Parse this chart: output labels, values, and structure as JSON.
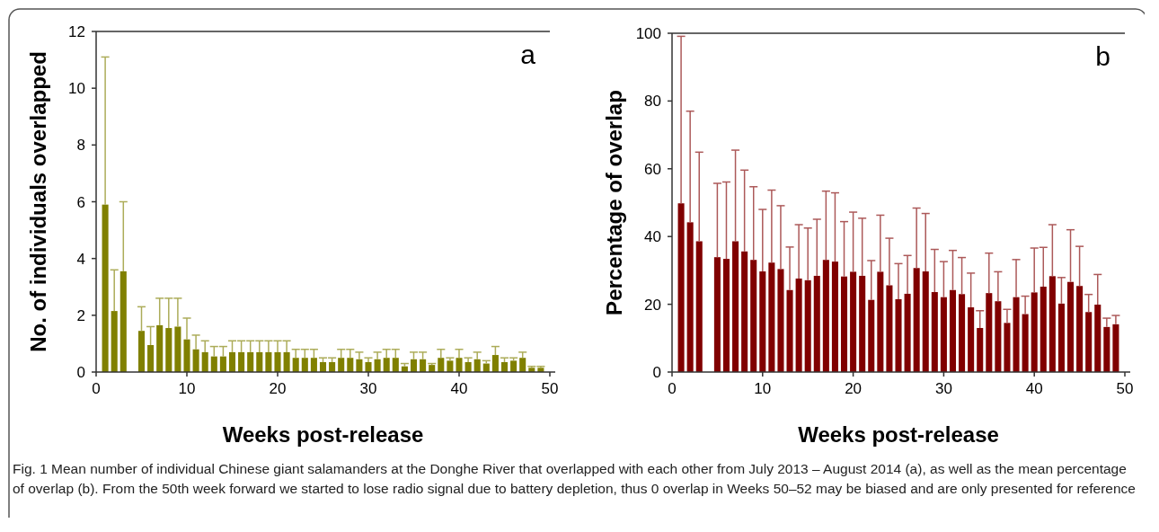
{
  "chart_data": [
    {
      "type": "bar",
      "xlabel": "Weeks post-release",
      "ylabel": "No. of individuals overlapped",
      "xlim": [
        0,
        50
      ],
      "xticks": [
        0,
        10,
        20,
        30,
        40,
        50
      ],
      "ylim": [
        0,
        12
      ],
      "yticks": [
        0,
        2,
        4,
        6,
        8,
        10,
        12
      ],
      "x": [
        1,
        2,
        3,
        5,
        6,
        7,
        8,
        9,
        10,
        11,
        12,
        13,
        14,
        15,
        16,
        17,
        18,
        19,
        20,
        21,
        22,
        23,
        24,
        25,
        26,
        27,
        28,
        29,
        30,
        31,
        32,
        33,
        34,
        35,
        36,
        37,
        38,
        39,
        40,
        41,
        42,
        43,
        44,
        45,
        46,
        47,
        48,
        49
      ],
      "series": [
        {
          "color": "#808000",
          "values": [
            5.9,
            2.15,
            3.55,
            1.45,
            0.95,
            1.65,
            1.55,
            1.6,
            1.15,
            0.8,
            0.7,
            0.55,
            0.55,
            0.7,
            0.7,
            0.7,
            0.7,
            0.7,
            0.7,
            0.7,
            0.5,
            0.5,
            0.5,
            0.35,
            0.35,
            0.5,
            0.5,
            0.45,
            0.35,
            0.45,
            0.5,
            0.5,
            0.2,
            0.45,
            0.45,
            0.25,
            0.5,
            0.4,
            0.5,
            0.35,
            0.45,
            0.3,
            0.6,
            0.35,
            0.4,
            0.5,
            0.15,
            0.15
          ],
          "errors": [
            [
              5.9,
              11.1
            ],
            [
              2.15,
              3.6
            ],
            [
              3.55,
              6
            ],
            [
              1.45,
              2.3
            ],
            [
              0.95,
              1.6
            ],
            [
              1.65,
              2.6
            ],
            [
              1.55,
              2.6
            ],
            [
              1.6,
              2.6
            ],
            [
              1.15,
              1.9
            ],
            [
              0.8,
              1.3
            ],
            [
              0.7,
              1.1
            ],
            [
              0.55,
              0.9
            ],
            [
              0.55,
              0.9
            ],
            [
              0.7,
              1.1
            ],
            [
              0.7,
              1.1
            ],
            [
              0.7,
              1.1
            ],
            [
              0.7,
              1.1
            ],
            [
              0.7,
              1.1
            ],
            [
              0.7,
              1.1
            ],
            [
              0.7,
              1.1
            ],
            [
              0.5,
              0.8
            ],
            [
              0.5,
              0.8
            ],
            [
              0.5,
              0.8
            ],
            [
              0.35,
              0.5
            ],
            [
              0.35,
              0.5
            ],
            [
              0.5,
              0.8
            ],
            [
              0.5,
              0.8
            ],
            [
              0.45,
              0.7
            ],
            [
              0.35,
              0.5
            ],
            [
              0.45,
              0.7
            ],
            [
              0.5,
              0.8
            ],
            [
              0.5,
              0.8
            ],
            [
              0.2,
              0.3
            ],
            [
              0.45,
              0.7
            ],
            [
              0.45,
              0.7
            ],
            [
              0.25,
              0.3
            ],
            [
              0.5,
              0.8
            ],
            [
              0.4,
              0.5
            ],
            [
              0.5,
              0.8
            ],
            [
              0.35,
              0.5
            ],
            [
              0.45,
              0.7
            ],
            [
              0.3,
              0.4
            ],
            [
              0.6,
              0.9
            ],
            [
              0.35,
              0.5
            ],
            [
              0.4,
              0.5
            ],
            [
              0.5,
              0.7
            ],
            [
              0.15,
              0.2
            ],
            [
              0.15,
              0.2
            ]
          ]
        }
      ],
      "annotations": [
        "a",
        "Fig. 1 Mean number of individual Chinese giant salamanders at the Donghe River that overlapped with each other from July 2013 – August 2014 (a), as well as the mean percentage of overlap (b). From the 50th week forward we started to lose radio signal due to battery depletion, thus 0 overlap in Weeks 50–52 may be biased and are only presented for reference"
      ]
    },
    {
      "type": "bar",
      "xlabel": "Weeks post-release",
      "ylabel": "Percentage of overlap",
      "xlim": [
        0,
        50
      ],
      "xticks": [
        0,
        10,
        20,
        30,
        40,
        50
      ],
      "ylim": [
        0,
        100
      ],
      "yticks": [
        0,
        20,
        40,
        60,
        80,
        100
      ],
      "x": [
        1,
        2,
        3,
        5,
        6,
        7,
        8,
        9,
        10,
        11,
        12,
        13,
        14,
        15,
        16,
        17,
        18,
        19,
        20,
        21,
        22,
        23,
        24,
        25,
        26,
        27,
        28,
        29,
        30,
        31,
        32,
        33,
        34,
        35,
        36,
        37,
        38,
        39,
        40,
        41,
        42,
        43,
        44,
        45,
        46,
        47,
        48,
        49
      ],
      "series": [
        {
          "color": "#800000",
          "values": [
            49.8,
            44.2,
            38.6,
            33.9,
            33.4,
            38.6,
            35.6,
            33.1,
            29.7,
            32.3,
            30.4,
            24.2,
            27.6,
            27.1,
            28.4,
            33.1,
            32.6,
            28.2,
            29.6,
            28.4,
            21.3,
            29.6,
            25.6,
            21.5,
            23.1,
            30.7,
            29.7,
            23.6,
            22.1,
            24.2,
            23,
            19.1,
            13,
            23.3,
            20.9,
            14.5,
            22.1,
            17.1,
            23.5,
            25.2,
            28.3,
            20.2,
            26.6,
            25.4,
            17.7,
            19.9,
            13.3,
            14.1
          ],
          "errors": [
            [
              49.8,
              99.1
            ],
            [
              44.2,
              77
            ],
            [
              38.6,
              64.9
            ],
            [
              33.9,
              55.7
            ],
            [
              33.4,
              56.1
            ],
            [
              38.6,
              65.5
            ],
            [
              35.6,
              59.6
            ],
            [
              33.1,
              54.7
            ],
            [
              29.7,
              48
            ],
            [
              32.3,
              53.7
            ],
            [
              30.4,
              49.1
            ],
            [
              24.2,
              36.9
            ],
            [
              27.6,
              43.5
            ],
            [
              27.1,
              42.5
            ],
            [
              28.4,
              45.1
            ],
            [
              33.1,
              53.4
            ],
            [
              32.6,
              52.9
            ],
            [
              28.2,
              44.4
            ],
            [
              29.6,
              47.2
            ],
            [
              28.4,
              45.4
            ],
            [
              21.3,
              32.9
            ],
            [
              29.6,
              46.3
            ],
            [
              25.6,
              39.5
            ],
            [
              21.5,
              32
            ],
            [
              23.1,
              34.4
            ],
            [
              30.7,
              48.4
            ],
            [
              29.7,
              46.8
            ],
            [
              23.6,
              36.2
            ],
            [
              22.1,
              32.6
            ],
            [
              24.2,
              35.9
            ],
            [
              23,
              33.8
            ],
            [
              19.1,
              29.2
            ],
            [
              13,
              18.1
            ],
            [
              23.3,
              35.1
            ],
            [
              20.9,
              29.6
            ],
            [
              14.5,
              18.5
            ],
            [
              22.1,
              33.2
            ],
            [
              17.1,
              22.4
            ],
            [
              23.5,
              36.6
            ],
            [
              25.2,
              36.8
            ],
            [
              28.3,
              43.5
            ],
            [
              20.2,
              27.9
            ],
            [
              26.6,
              42
            ],
            [
              25.4,
              37.1
            ],
            [
              17.7,
              22.9
            ],
            [
              19.9,
              28.8
            ],
            [
              13.3,
              15.9
            ],
            [
              14.1,
              16.7
            ]
          ]
        }
      ],
      "annotations": [
        "b"
      ]
    }
  ]
}
